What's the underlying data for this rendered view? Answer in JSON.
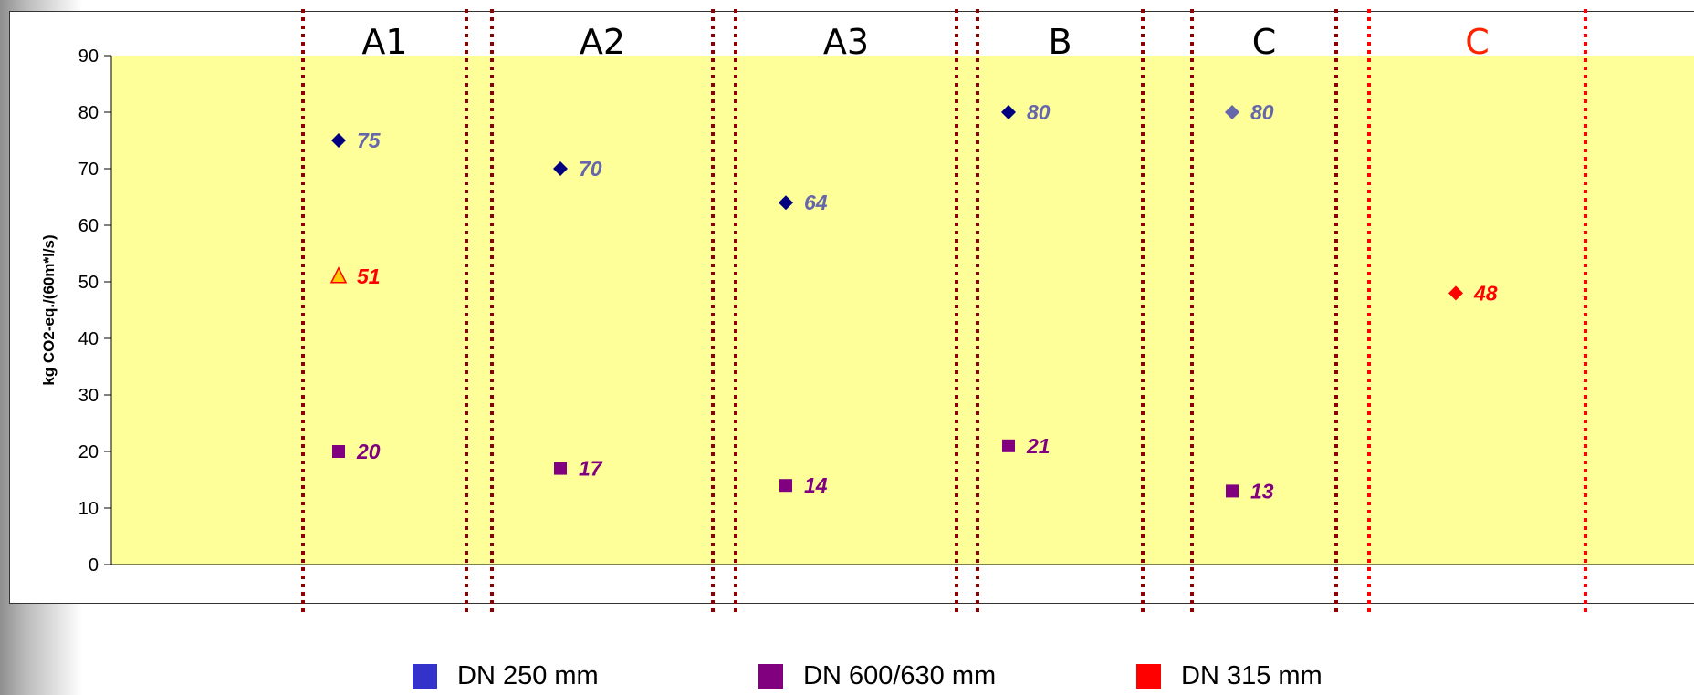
{
  "chart_data": {
    "type": "scatter",
    "ylabel": "kg CO2-eq./(60m*l/s)",
    "ylim": [
      0,
      90
    ],
    "yticks": [
      0,
      10,
      20,
      30,
      40,
      50,
      60,
      70,
      80,
      90
    ],
    "plot_background": "#ffff99",
    "groups": [
      {
        "label": "A1",
        "label_color": "#000000",
        "divider_color": "#8b0000"
      },
      {
        "label": "A2",
        "label_color": "#000000",
        "divider_color": "#8b0000"
      },
      {
        "label": "A3",
        "label_color": "#000000",
        "divider_color": "#8b0000"
      },
      {
        "label": "B",
        "label_color": "#000000",
        "divider_color": "#8b0000"
      },
      {
        "label": "C",
        "label_color": "#000000",
        "divider_color": "#8b0000"
      },
      {
        "label": "C",
        "label_color": "#ff2200",
        "divider_color": "#ff0000"
      }
    ],
    "points": [
      {
        "group": 0,
        "y": 75,
        "label": "75",
        "marker": "diamond",
        "marker_color": "#000080",
        "label_color": "#6666aa"
      },
      {
        "group": 0,
        "y": 51,
        "label": "51",
        "marker": "triangle",
        "marker_color": "#ffcc00",
        "label_color": "#ff0000"
      },
      {
        "group": 0,
        "y": 20,
        "label": "20",
        "marker": "square",
        "marker_color": "#800080",
        "label_color": "#800080"
      },
      {
        "group": 1,
        "y": 70,
        "label": "70",
        "marker": "diamond",
        "marker_color": "#000080",
        "label_color": "#6666aa"
      },
      {
        "group": 1,
        "y": 17,
        "label": "17",
        "marker": "square",
        "marker_color": "#800080",
        "label_color": "#800080"
      },
      {
        "group": 2,
        "y": 64,
        "label": "64",
        "marker": "diamond",
        "marker_color": "#000080",
        "label_color": "#6666aa"
      },
      {
        "group": 2,
        "y": 14,
        "label": "14",
        "marker": "square",
        "marker_color": "#800080",
        "label_color": "#800080"
      },
      {
        "group": 3,
        "y": 80,
        "label": "80",
        "marker": "diamond",
        "marker_color": "#000080",
        "label_color": "#6666aa"
      },
      {
        "group": 3,
        "y": 21,
        "label": "21",
        "marker": "square",
        "marker_color": "#800080",
        "label_color": "#800080"
      },
      {
        "group": 4,
        "y": 80,
        "label": "80",
        "marker": "diamond",
        "marker_color": "#6666aa",
        "label_color": "#6666aa"
      },
      {
        "group": 4,
        "y": 13,
        "label": "13",
        "marker": "square",
        "marker_color": "#800080",
        "label_color": "#800080"
      },
      {
        "group": 5,
        "y": 48,
        "label": "48",
        "marker": "diamond",
        "marker_color": "#ff0000",
        "label_color": "#ff0000"
      }
    ],
    "legend": [
      {
        "label": "DN 250 mm",
        "color": "#3333cc"
      },
      {
        "label": "DN 600/630 mm",
        "color": "#800080"
      },
      {
        "label": "DN 315 mm",
        "color": "#ff0000"
      }
    ]
  }
}
